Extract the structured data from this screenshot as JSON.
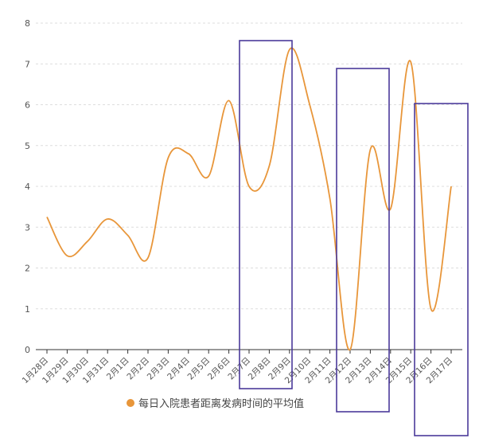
{
  "chart_data": {
    "type": "line",
    "title": "",
    "xlabel": "",
    "ylabel": "",
    "categories": [
      "1月28日",
      "1月29日",
      "1月30日",
      "1月31日",
      "2月1日",
      "2月2日",
      "2月3日",
      "2月4日",
      "2月5日",
      "2月6日",
      "2月7日",
      "2月8日",
      "2月9日",
      "2月10日",
      "2月11日",
      "2月12日",
      "2月13日",
      "2月14日",
      "2月15日",
      "2月16日",
      "2月17日"
    ],
    "series": [
      {
        "name": "每日入院患者距离发病时间的平均值",
        "color": "#E8963A",
        "values": [
          3.25,
          2.3,
          2.65,
          3.2,
          2.8,
          2.25,
          4.7,
          4.8,
          4.25,
          6.1,
          4.0,
          4.5,
          7.35,
          6.0,
          3.7,
          0.0,
          4.9,
          3.45,
          7.05,
          1.0,
          4.0
        ]
      }
    ],
    "ylim": [
      0,
      8
    ],
    "yticks": [
      0,
      1,
      2,
      3,
      4,
      5,
      6,
      7,
      8
    ],
    "grid": true,
    "legend": "bottom",
    "highlight_ranges": [
      {
        "from": "2月7日",
        "to": "2月9日",
        "color": "#4B3A9A"
      },
      {
        "from": "2月12日",
        "to": "2月14日",
        "color": "#4B3A9A"
      },
      {
        "from": "2月15日",
        "to": "2月17日",
        "color": "#4B3A9A"
      }
    ]
  }
}
